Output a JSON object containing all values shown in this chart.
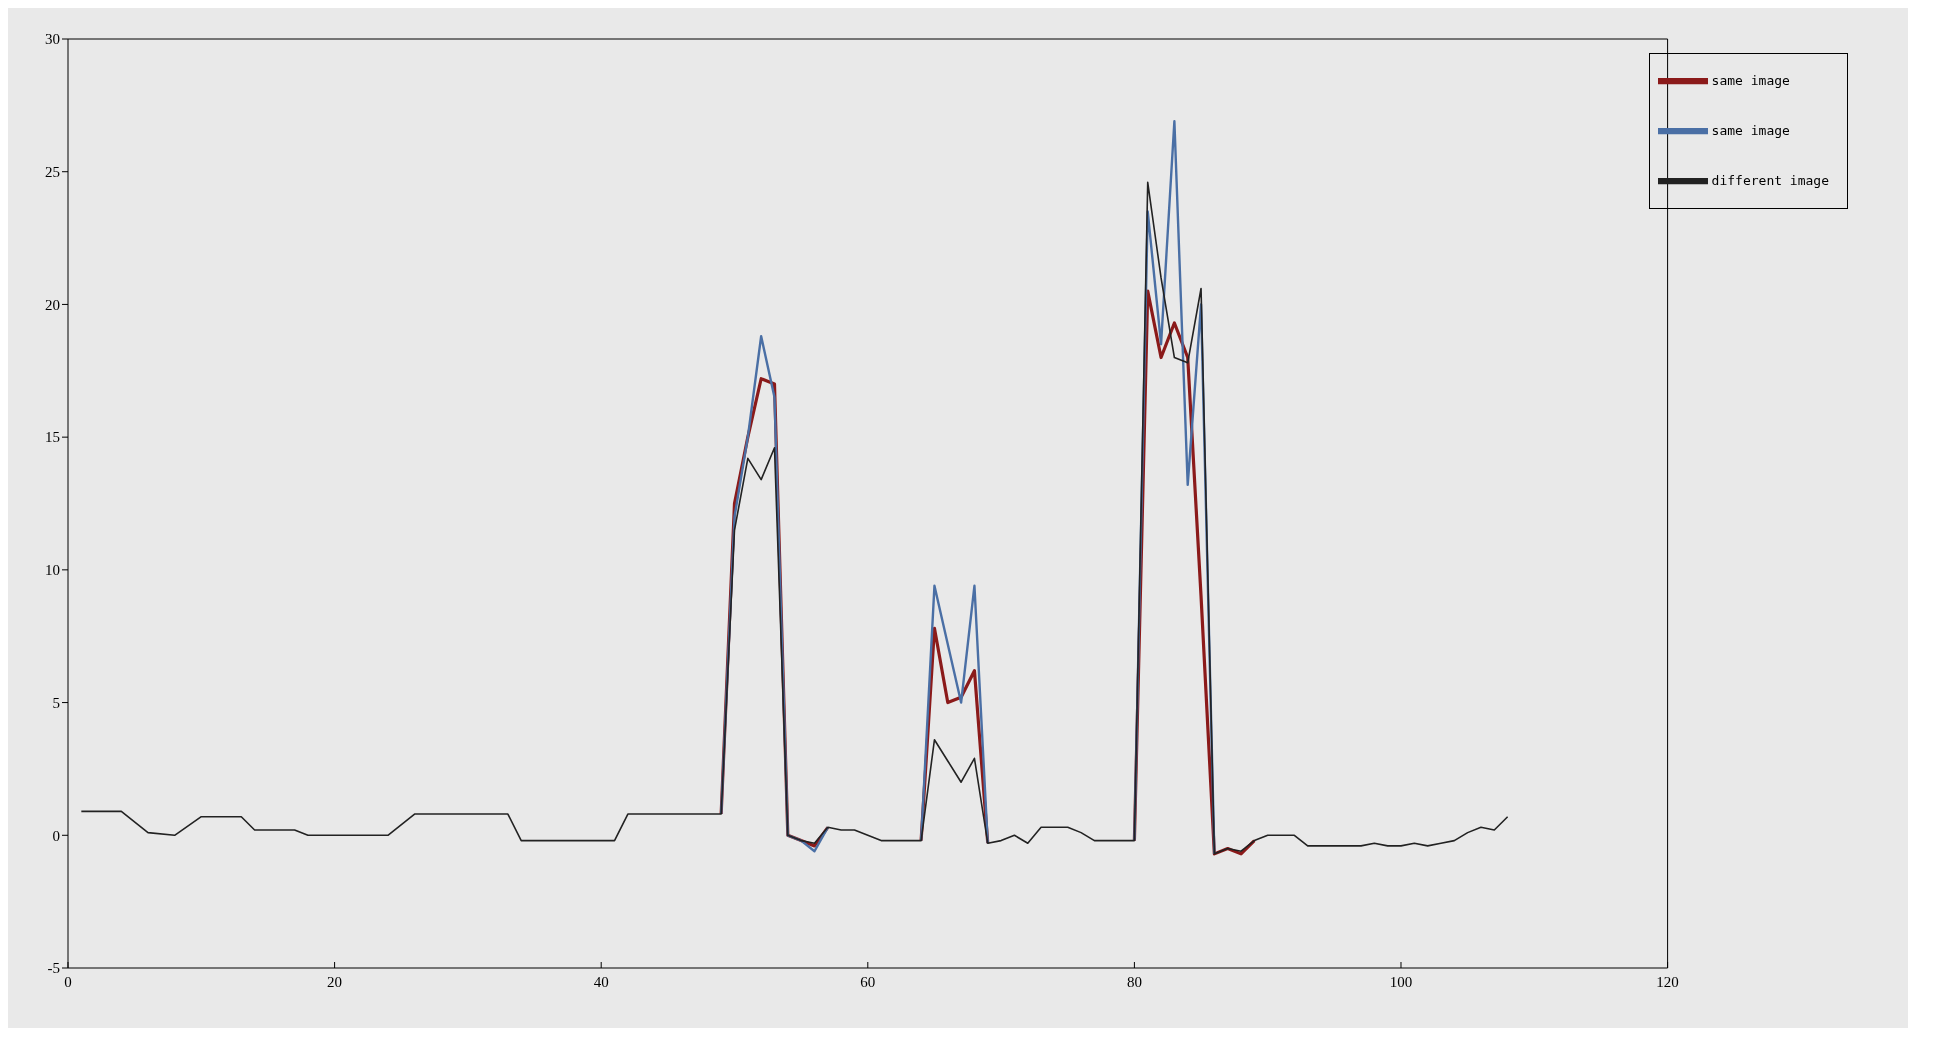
{
  "chart_data": {
    "type": "line",
    "x": [
      1,
      4,
      6,
      8,
      10,
      13,
      14,
      17,
      18,
      24,
      26,
      33,
      34,
      41,
      42,
      49,
      50,
      51,
      52,
      53,
      54,
      55,
      56,
      57,
      58,
      59,
      60,
      61,
      64,
      65,
      66,
      67,
      68,
      69,
      70,
      71,
      72,
      73,
      75,
      76,
      77,
      80,
      81,
      82,
      83,
      84,
      85,
      86,
      87,
      88,
      89,
      90,
      92,
      93,
      97,
      98,
      99,
      100,
      101,
      102,
      103,
      104,
      105,
      106,
      107,
      108
    ],
    "series": [
      {
        "name": "same image",
        "color": "#8b1a1a",
        "values": [
          null,
          null,
          null,
          null,
          null,
          null,
          null,
          null,
          null,
          null,
          null,
          null,
          null,
          null,
          null,
          0.8,
          12.5,
          15,
          17.2,
          17,
          0,
          -0.2,
          -0.4,
          0.3,
          null,
          null,
          null,
          null,
          -0.2,
          7.8,
          5.0,
          5.2,
          6.2,
          -0.3,
          null,
          null,
          null,
          null,
          null,
          null,
          null,
          -0.2,
          20.5,
          18,
          19.3,
          18,
          9,
          -0.7,
          -0.5,
          -0.7,
          -0.2,
          null,
          null,
          null,
          null,
          null,
          null,
          null,
          null,
          null,
          null,
          null,
          null,
          null,
          null,
          null
        ]
      },
      {
        "name": "same image",
        "color": "#4a6fa5",
        "values": [
          null,
          null,
          null,
          null,
          null,
          null,
          null,
          null,
          null,
          null,
          null,
          null,
          null,
          null,
          null,
          0.8,
          12,
          15,
          18.8,
          16.5,
          0,
          -0.2,
          -0.6,
          0.3,
          null,
          null,
          null,
          null,
          -0.2,
          9.4,
          7.2,
          5.0,
          9.4,
          -0.3,
          null,
          null,
          null,
          null,
          null,
          null,
          null,
          -0.2,
          23.5,
          18.5,
          26.9,
          13.2,
          20,
          -0.7,
          null,
          null,
          null,
          null,
          null,
          null,
          null,
          null,
          null,
          null,
          null,
          null,
          null,
          null,
          null,
          null,
          null,
          null
        ]
      },
      {
        "name": "different image",
        "color": "#222222",
        "values": [
          0.9,
          0.9,
          0.1,
          0.0,
          0.7,
          0.7,
          0.2,
          0.2,
          0.0,
          0.0,
          0.8,
          0.8,
          -0.2,
          -0.2,
          0.8,
          0.8,
          11.5,
          14.2,
          13.4,
          14.6,
          0,
          -0.2,
          -0.3,
          0.3,
          0.2,
          0.2,
          0.0,
          -0.2,
          -0.2,
          3.6,
          2.8,
          2.0,
          2.9,
          -0.3,
          -0.2,
          0.0,
          -0.3,
          0.3,
          0.3,
          0.1,
          -0.2,
          -0.2,
          24.6,
          21,
          18,
          17.8,
          20.6,
          -0.7,
          -0.5,
          -0.6,
          -0.2,
          0.0,
          0.0,
          -0.4,
          -0.4,
          -0.3,
          -0.4,
          -0.4,
          -0.3,
          -0.4,
          -0.3,
          -0.2,
          0.1,
          0.3,
          0.2,
          0.7
        ]
      }
    ],
    "xlim": [
      0,
      120
    ],
    "xticks": [
      0,
      20,
      40,
      60,
      80,
      100,
      120
    ],
    "ylim": [
      -5,
      30
    ],
    "yticks": [
      -5,
      0,
      5,
      10,
      15,
      20,
      25,
      30
    ],
    "grid": false,
    "legend": "top right",
    "marker": "none",
    "line_style": "solid"
  }
}
